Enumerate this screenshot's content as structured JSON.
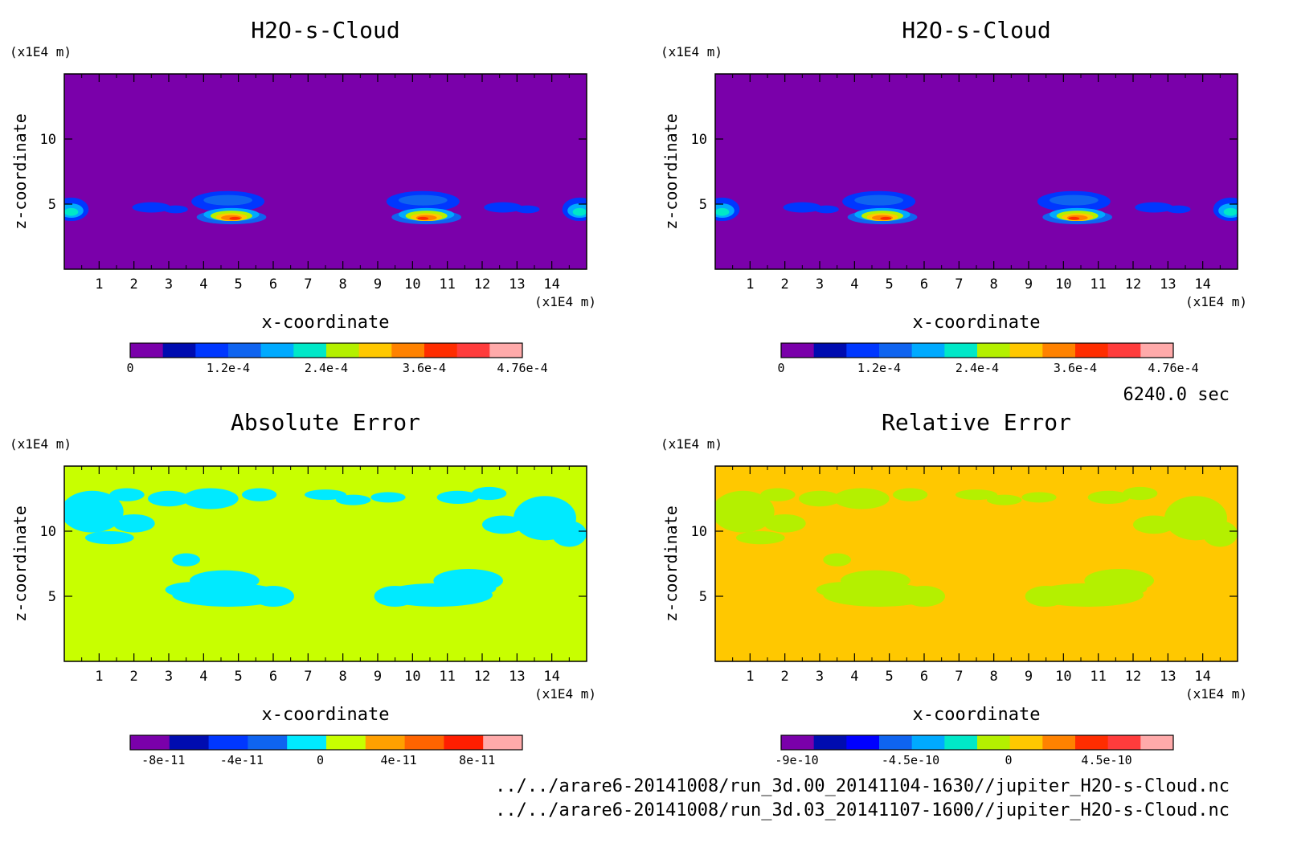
{
  "panels": [
    {
      "id": "model-a",
      "title": "H2O-s-Cloud",
      "unit_label": "(x1E4 m)",
      "xlabel": "x-coordinate",
      "ylabel": "z-coordinate",
      "x_unit_label": "(x1E4 m)",
      "bg_color": "#7a00aa",
      "colorbar": {
        "colors": [
          "#7a00aa",
          "#000cb0",
          "#0037ff",
          "#0f64f0",
          "#00aaff",
          "#00e8c8",
          "#b4f000",
          "#ffc800",
          "#ff8200",
          "#ff2d00",
          "#ff3c3c",
          "#ffaaaa"
        ],
        "labels": [
          "0",
          "1.2e-4",
          "2.4e-4",
          "3.6e-4",
          "4.76e-4"
        ]
      }
    },
    {
      "id": "model-b",
      "title": "H2O-s-Cloud",
      "unit_label": "(x1E4 m)",
      "xlabel": "x-coordinate",
      "ylabel": "z-coordinate",
      "x_unit_label": "(x1E4 m)",
      "bg_color": "#7a00aa",
      "colorbar": {
        "colors": [
          "#7a00aa",
          "#000cb0",
          "#0037ff",
          "#0f64f0",
          "#00aaff",
          "#00e8c8",
          "#b4f000",
          "#ffc800",
          "#ff8200",
          "#ff2d00",
          "#ff3c3c",
          "#ffaaaa"
        ],
        "labels": [
          "0",
          "1.2e-4",
          "2.4e-4",
          "3.6e-4",
          "4.76e-4"
        ]
      }
    },
    {
      "id": "abs-error",
      "title": "Absolute Error",
      "unit_label": "(x1E4 m)",
      "xlabel": "x-coordinate",
      "ylabel": "z-coordinate",
      "x_unit_label": "(x1E4 m)",
      "bg_color": "#c8ff00",
      "colorbar": {
        "colors": [
          "#7a00aa",
          "#000cb0",
          "#0037ff",
          "#0f64f0",
          "#00eaff",
          "#c8ff00",
          "#ffa000",
          "#ff6400",
          "#ff1e00",
          "#ffaaaa"
        ],
        "labels": [
          "-8e-11",
          "-4e-11",
          "0",
          "4e-11",
          "8e-11"
        ]
      }
    },
    {
      "id": "rel-error",
      "title": "Relative Error",
      "unit_label": "(x1E4 m)",
      "xlabel": "x-coordinate",
      "ylabel": "z-coordinate",
      "x_unit_label": "(x1E4 m)",
      "bg_color": "#ffc800",
      "colorbar": {
        "colors": [
          "#7a00aa",
          "#000cb0",
          "#0000ff",
          "#0f64f0",
          "#00aaff",
          "#00e8c8",
          "#b4f000",
          "#ffc800",
          "#ff8200",
          "#ff2d00",
          "#ff3c3c",
          "#ffaaaa"
        ],
        "labels": [
          "-9e-10",
          "-4.5e-10",
          "0",
          "4.5e-10"
        ]
      }
    }
  ],
  "time_label": "6240.0 sec",
  "file_paths": [
    "../../arare6-20141008/run_3d.00_20141104-1630//jupiter_H2O-s-Cloud.nc",
    "../../arare6-20141008/run_3d.03_20141107-1600//jupiter_H2O-s-Cloud.nc"
  ],
  "chart_data": [
    {
      "type": "heatmap",
      "title": "H2O-s-Cloud",
      "xlabel": "x-coordinate",
      "ylabel": "z-coordinate",
      "x_unit": "(x1E4 m)",
      "y_unit": "(x1E4 m)",
      "xlim": [
        0,
        15
      ],
      "ylim": [
        0,
        15
      ],
      "x_ticks": [
        1,
        2,
        3,
        4,
        5,
        6,
        7,
        8,
        9,
        10,
        11,
        12,
        13,
        14
      ],
      "y_ticks": [
        5,
        10
      ],
      "colorbar_ticks": [
        0,
        0.00012,
        0.00024,
        0.00036,
        0.000476
      ],
      "features": [
        {
          "x": 0.4,
          "z": 4.6,
          "max": 0.00026
        },
        {
          "x": 2.5,
          "z": 4.8,
          "max": 4e-05
        },
        {
          "x": 4.8,
          "z": 4.0,
          "max": 0.00044
        },
        {
          "x": 10.4,
          "z": 4.0,
          "max": 0.00044
        },
        {
          "x": 12.6,
          "z": 4.8,
          "max": 4e-05
        },
        {
          "x": 14.7,
          "z": 4.6,
          "max": 0.00026
        }
      ]
    },
    {
      "type": "heatmap",
      "title": "H2O-s-Cloud",
      "xlabel": "x-coordinate",
      "ylabel": "z-coordinate",
      "x_unit": "(x1E4 m)",
      "y_unit": "(x1E4 m)",
      "xlim": [
        0,
        15
      ],
      "ylim": [
        0,
        15
      ],
      "x_ticks": [
        1,
        2,
        3,
        4,
        5,
        6,
        7,
        8,
        9,
        10,
        11,
        12,
        13,
        14
      ],
      "y_ticks": [
        5,
        10
      ],
      "colorbar_ticks": [
        0,
        0.00012,
        0.00024,
        0.00036,
        0.000476
      ],
      "features": [
        {
          "x": 0.4,
          "z": 4.6,
          "max": 0.00026
        },
        {
          "x": 2.5,
          "z": 4.8,
          "max": 4e-05
        },
        {
          "x": 4.8,
          "z": 4.0,
          "max": 0.00044
        },
        {
          "x": 10.4,
          "z": 4.0,
          "max": 0.00044
        },
        {
          "x": 12.6,
          "z": 4.8,
          "max": 4e-05
        },
        {
          "x": 14.7,
          "z": 4.6,
          "max": 0.00026
        }
      ]
    },
    {
      "type": "heatmap",
      "title": "Absolute Error",
      "xlabel": "x-coordinate",
      "ylabel": "z-coordinate",
      "xlim": [
        0,
        15
      ],
      "ylim": [
        0,
        15
      ],
      "x_ticks": [
        1,
        2,
        3,
        4,
        5,
        6,
        7,
        8,
        9,
        10,
        11,
        12,
        13,
        14
      ],
      "y_ticks": [
        5,
        10
      ],
      "colorbar_ticks": [
        -8e-11,
        -4e-11,
        0,
        4e-11,
        8e-11
      ],
      "dominant_value": 0,
      "secondary_value": -1e-11
    },
    {
      "type": "heatmap",
      "title": "Relative Error",
      "xlabel": "x-coordinate",
      "ylabel": "z-coordinate",
      "xlim": [
        0,
        15
      ],
      "ylim": [
        0,
        15
      ],
      "x_ticks": [
        1,
        2,
        3,
        4,
        5,
        6,
        7,
        8,
        9,
        10,
        11,
        12,
        13,
        14
      ],
      "y_ticks": [
        5,
        10
      ],
      "colorbar_ticks": [
        -9e-10,
        -4.5e-10,
        0,
        4.5e-10
      ],
      "dominant_value": 0,
      "secondary_value": -1e-10
    }
  ]
}
